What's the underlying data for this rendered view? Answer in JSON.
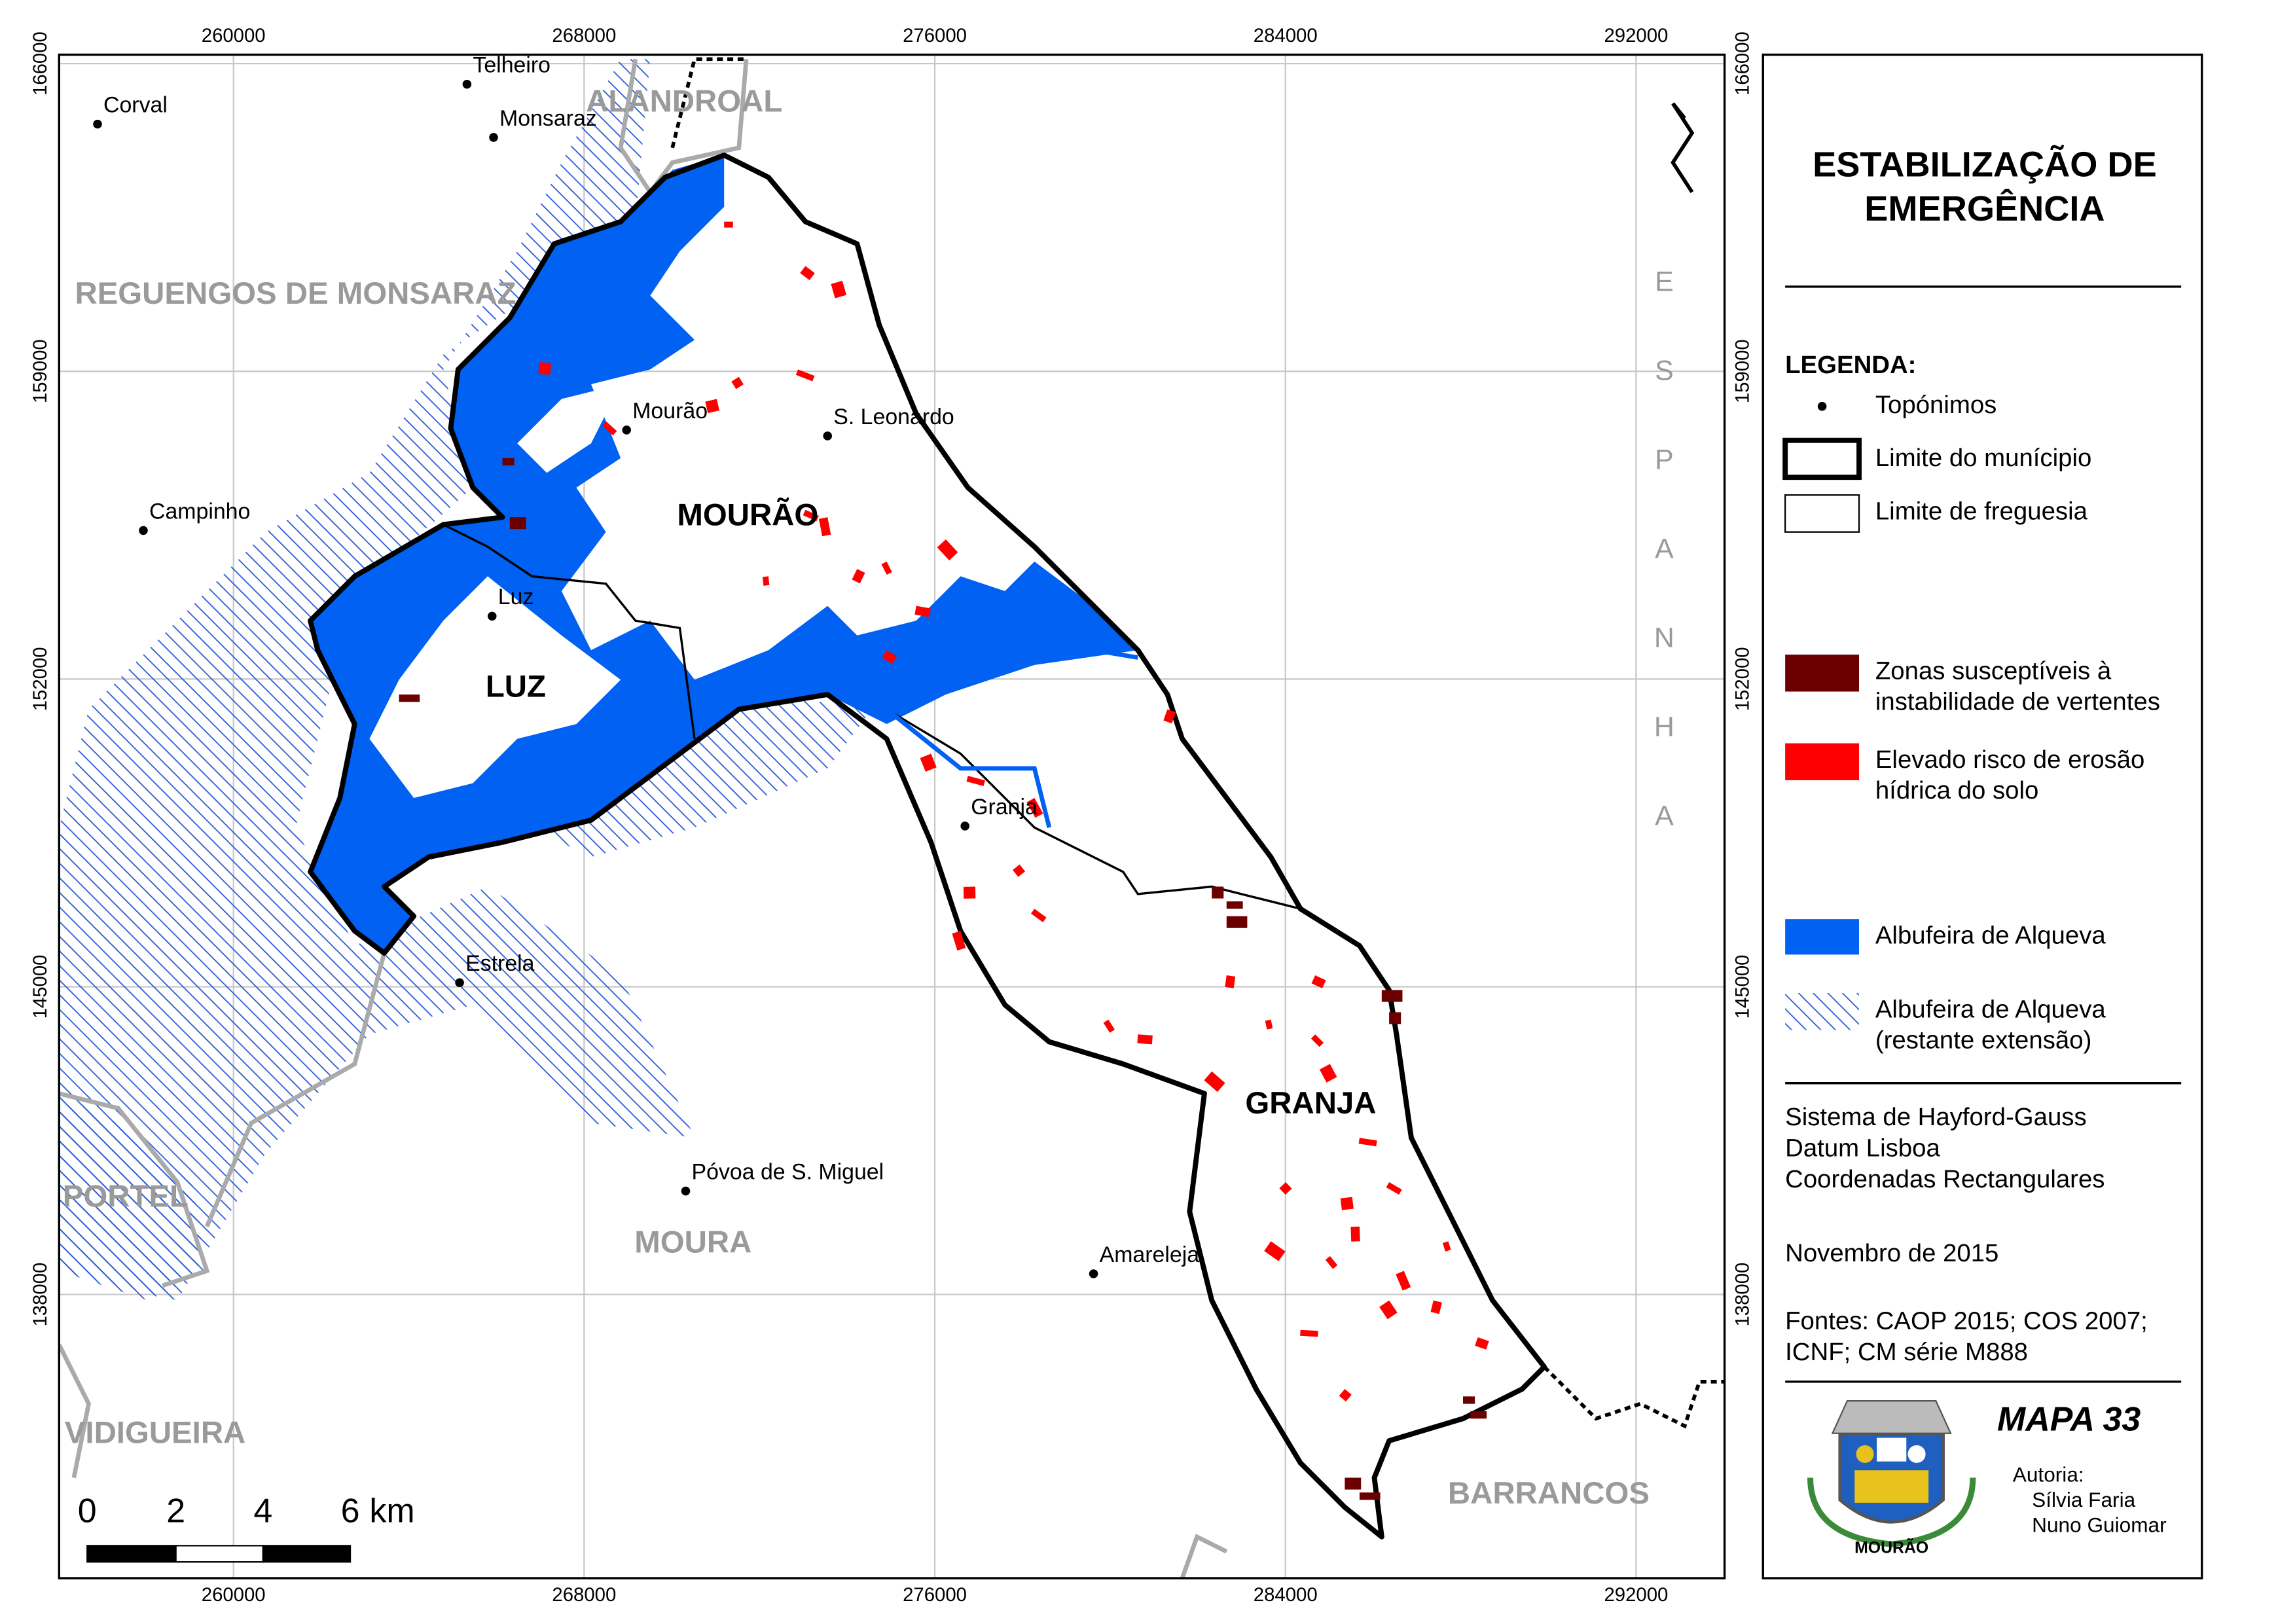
{
  "map": {
    "grid": {
      "x_ticks": [
        "260000",
        "268000",
        "276000",
        "284000",
        "292000"
      ],
      "y_ticks": [
        "166000",
        "159000",
        "152000",
        "145000",
        "138000"
      ]
    },
    "places": [
      "Corval",
      "Telheiro",
      "Monsaraz",
      "Mourão",
      "S. Leonardo",
      "Campinho",
      "Luz",
      "Granja",
      "Estrela",
      "Póvoa de S. Miguel",
      "Amareleja"
    ],
    "municipalities": [
      "ALANDROAL",
      "REGUENGOS DE MONSARAZ",
      "PORTEL",
      "VIDIGUEIRA",
      "MOURA",
      "BARRANCOS"
    ],
    "country": "ESPANHA",
    "parishes": [
      "MOURÃO",
      "LUZ",
      "GRANJA"
    ],
    "scale_bar": {
      "labels": [
        "0",
        "2",
        "4",
        "6"
      ],
      "unit": "km"
    }
  },
  "legend": {
    "title_lines": [
      "ESTABILIZAÇÃO DE",
      "EMERGÊNCIA"
    ],
    "heading": "LEGENDA:",
    "items": [
      {
        "label": [
          "Topónimos"
        ]
      },
      {
        "label": [
          "Limite do munícipio"
        ]
      },
      {
        "label": [
          "Limite de freguesia"
        ]
      },
      {
        "label": [
          "Zonas susceptíveis à",
          "instabilidade de vertentes"
        ]
      },
      {
        "label": [
          "Elevado risco de erosão",
          "hídrica do solo"
        ]
      },
      {
        "label": [
          "Albufeira de Alqueva"
        ]
      },
      {
        "label": [
          "Albufeira de Alqueva",
          "(restante extensão)"
        ]
      }
    ],
    "projection": [
      "Sistema de Hayford-Gauss",
      "Datum Lisboa",
      "Coordenadas Rectangulares"
    ],
    "date": "Novembro de 2015",
    "sources": [
      "Fontes: CAOP 2015; COS 2007;",
      "ICNF; CM série M888"
    ],
    "map_number": "MAPA 33",
    "authors_heading": "Autoria:",
    "authors": [
      "Sílvia Faria",
      "Nuno Guiomar"
    ],
    "crest_label": "MOURÃO"
  }
}
